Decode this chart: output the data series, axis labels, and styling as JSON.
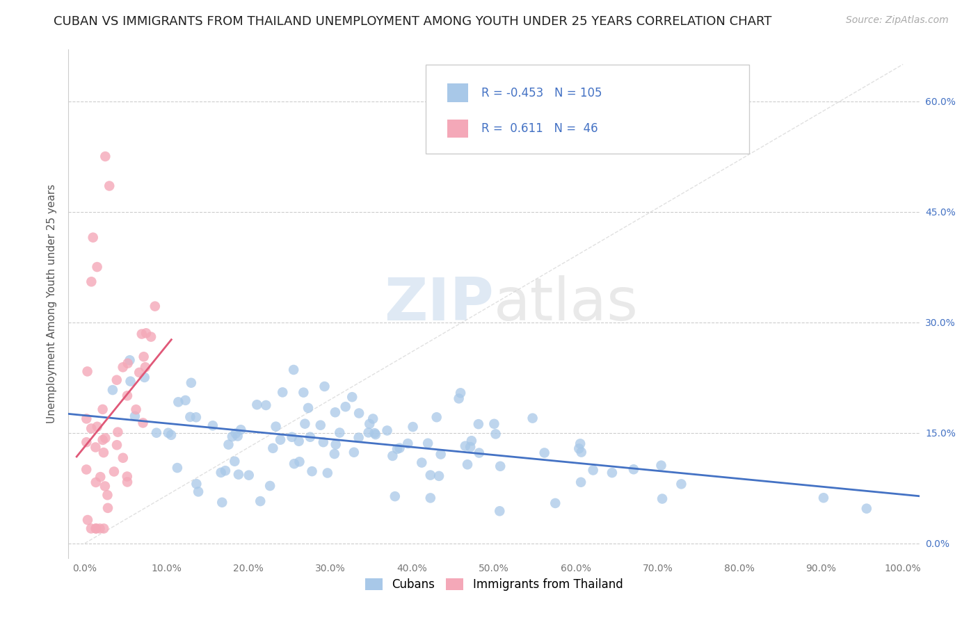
{
  "title": "CUBAN VS IMMIGRANTS FROM THAILAND UNEMPLOYMENT AMONG YOUTH UNDER 25 YEARS CORRELATION CHART",
  "source": "Source: ZipAtlas.com",
  "ylabel": "Unemployment Among Youth under 25 years",
  "cuban_R": -0.453,
  "cuban_N": 105,
  "thai_R": 0.611,
  "thai_N": 46,
  "cuban_color": "#a8c8e8",
  "cuban_line_color": "#4472c4",
  "thai_color": "#f4a8b8",
  "thai_line_color": "#e05878",
  "background_color": "#ffffff",
  "grid_color": "#cccccc",
  "watermark_zip": "ZIP",
  "watermark_atlas": "atlas",
  "xlim": [
    -0.02,
    1.02
  ],
  "ylim": [
    -0.02,
    0.67
  ],
  "xticks": [
    0.0,
    0.1,
    0.2,
    0.3,
    0.4,
    0.5,
    0.6,
    0.7,
    0.8,
    0.9,
    1.0
  ],
  "xticklabels": [
    "0.0%",
    "10.0%",
    "20.0%",
    "30.0%",
    "40.0%",
    "50.0%",
    "60.0%",
    "70.0%",
    "80.0%",
    "90.0%",
    "100.0%"
  ],
  "yticks": [
    0.0,
    0.15,
    0.3,
    0.45,
    0.6
  ],
  "yticklabels_right": [
    "0.0%",
    "15.0%",
    "30.0%",
    "45.0%",
    "60.0%"
  ],
  "title_fontsize": 13,
  "source_fontsize": 10,
  "tick_fontsize": 10,
  "ylabel_fontsize": 11
}
